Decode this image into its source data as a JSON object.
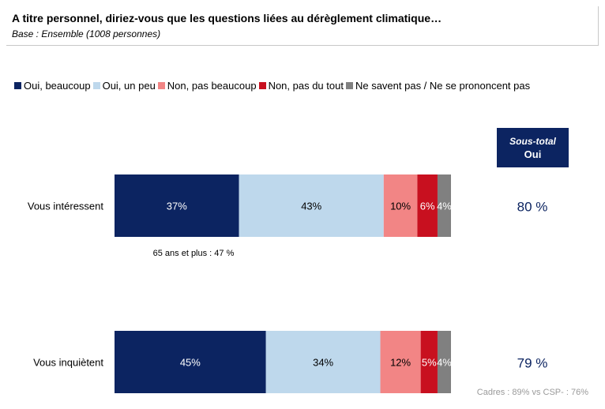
{
  "header": {
    "title": "A titre personnel, diriez-vous que les questions liées au dérèglement climatique…",
    "subtitle": "Base : Ensemble (1008 personnes)"
  },
  "subtotal": {
    "label_line1": "Sous-total",
    "label_line2": "Oui"
  },
  "chart_data": {
    "type": "bar",
    "orientation": "horizontal",
    "stacked": true,
    "percent_scale": [
      0,
      100
    ],
    "legend_placement": "top",
    "grid": false,
    "categories": [
      "Vous intéressent",
      "Vous inquiètent"
    ],
    "series": [
      {
        "name": "Oui, beaucoup",
        "color": "#0c2461",
        "label_color": "#ffffff",
        "values": [
          37,
          45
        ],
        "labels": [
          "37%",
          "45%"
        ]
      },
      {
        "name": "Oui, un peu",
        "color": "#bed8ec",
        "label_color": "#000000",
        "values": [
          43,
          34
        ],
        "labels": [
          "43%",
          "34%"
        ]
      },
      {
        "name": "Non, pas beaucoup",
        "color": "#f28585",
        "label_color": "#000000",
        "values": [
          10,
          12
        ],
        "labels": [
          "10%",
          "12%"
        ]
      },
      {
        "name": "Non, pas du tout",
        "color": "#c8101f",
        "label_color": "#ffffff",
        "values": [
          6,
          5
        ],
        "labels": [
          "6%",
          "5%"
        ]
      },
      {
        "name": "Ne savent pas / Ne se prononcent pas",
        "color": "#808080",
        "label_color": "#ffffff",
        "values": [
          4,
          4
        ],
        "labels": [
          "4%",
          "4%"
        ]
      }
    ],
    "subtotal_values": [
      "80 %",
      "79 %"
    ],
    "subtotal_color": "#0c2461",
    "annotations": [
      "65 ans et plus : 47 %",
      "Cadres : 89% vs CSP- : 76%"
    ]
  }
}
